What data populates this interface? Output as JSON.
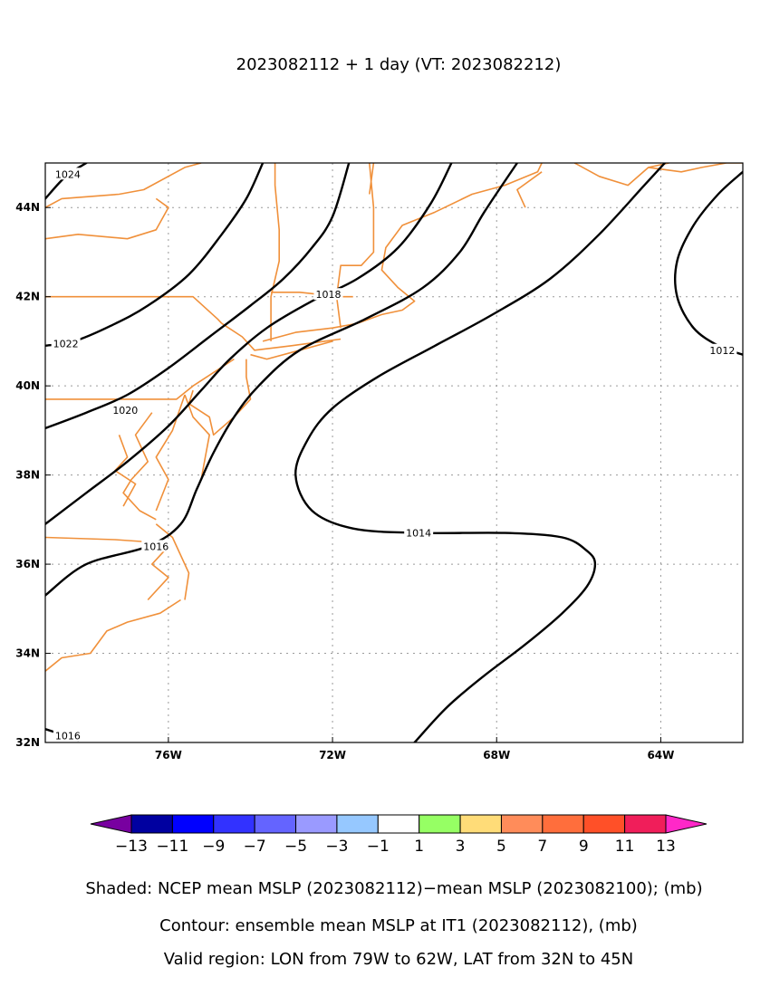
{
  "title": "2023082112 + 1 day (VT: 2023082212)",
  "captions": [
    "Shaded: NCEP mean MSLP (2023082112)−mean MSLP (2023082100); (mb)",
    "Contour: ensemble mean MSLP at IT1 (2023082112), (mb)",
    "Valid region: LON from 79W to 62W, LAT from 32N to 45N"
  ],
  "colors": {
    "coast": "#f0903a",
    "contour": "#000000",
    "grid": "#9a9a9a"
  },
  "chart_data": {
    "type": "contour-map",
    "projection": "lat-lon",
    "xlim": [
      -79,
      -62
    ],
    "ylim": [
      32,
      45
    ],
    "grid": true,
    "x_ticks": [
      {
        "value": -76,
        "label": "76W"
      },
      {
        "value": -72,
        "label": "72W"
      },
      {
        "value": -68,
        "label": "68W"
      },
      {
        "value": -64,
        "label": "64W"
      }
    ],
    "y_ticks": [
      {
        "value": 44,
        "label": "44N"
      },
      {
        "value": 42,
        "label": "42N"
      },
      {
        "value": 40,
        "label": "40N"
      },
      {
        "value": 38,
        "label": "38N"
      },
      {
        "value": 36,
        "label": "36N"
      },
      {
        "value": 34,
        "label": "34N"
      },
      {
        "value": 32,
        "label": "32N"
      }
    ],
    "colorbar": {
      "ticks": [
        "−13",
        "−11",
        "−9",
        "−7",
        "−5",
        "−3",
        "−1",
        "1",
        "3",
        "5",
        "7",
        "9",
        "11",
        "13"
      ],
      "bins": [
        "#0000a0",
        "#0000ff",
        "#3232ff",
        "#6464ff",
        "#9a9aff",
        "#96c8ff",
        "#ffffff",
        "#96ff64",
        "#ffdc78",
        "#ff8c5a",
        "#ff6e3c",
        "#ff5028",
        "#f01e5a"
      ],
      "under_color": "#7800a0",
      "over_color": "#ff28c8"
    },
    "contours": [
      {
        "level": 1024,
        "label": "1024",
        "label_at": [
          -78.45,
          44.75
        ],
        "points": [
          [
            -79,
            44.2
          ],
          [
            -78.5,
            44.7
          ],
          [
            -78,
            45
          ]
        ]
      },
      {
        "level": 1022,
        "label": "1022",
        "label_at": [
          -78.5,
          40.95
        ],
        "points": [
          [
            -79,
            40.9
          ],
          [
            -78.3,
            41.0
          ],
          [
            -77.4,
            41.35
          ],
          [
            -76.5,
            41.8
          ],
          [
            -75.5,
            42.5
          ],
          [
            -74.7,
            43.4
          ],
          [
            -74.1,
            44.2
          ],
          [
            -73.7,
            45
          ]
        ]
      },
      {
        "level": 1020,
        "label": "1020",
        "label_at": [
          -77.05,
          39.45
        ],
        "points": [
          [
            -79,
            39.05
          ],
          [
            -78,
            39.4
          ],
          [
            -77,
            39.8
          ],
          [
            -76,
            40.4
          ],
          [
            -75,
            41.1
          ],
          [
            -74,
            41.8
          ],
          [
            -73.2,
            42.4
          ],
          [
            -72.5,
            43.1
          ],
          [
            -72,
            43.8
          ],
          [
            -71.6,
            45
          ]
        ]
      },
      {
        "level": 1018,
        "label": "1018",
        "label_at": [
          -72.1,
          42.05
        ],
        "points": [
          [
            -79,
            36.9
          ],
          [
            -78,
            37.6
          ],
          [
            -77,
            38.3
          ],
          [
            -76,
            39.1
          ],
          [
            -75.2,
            39.9
          ],
          [
            -74.5,
            40.6
          ],
          [
            -73.6,
            41.3
          ],
          [
            -72.5,
            41.9
          ],
          [
            -71.4,
            42.4
          ],
          [
            -70.4,
            43.1
          ],
          [
            -69.6,
            44.1
          ],
          [
            -69.1,
            45
          ]
        ]
      },
      {
        "level": 1016,
        "label": "1016",
        "label_at": [
          -76.3,
          36.4
        ],
        "points": [
          [
            -79,
            35.3
          ],
          [
            -78,
            36.0
          ],
          [
            -76.5,
            36.4
          ],
          [
            -75.7,
            36.9
          ],
          [
            -75.3,
            37.7
          ],
          [
            -74.9,
            38.5
          ],
          [
            -74.4,
            39.3
          ],
          [
            -73.8,
            40.0
          ],
          [
            -72.8,
            40.8
          ],
          [
            -71.2,
            41.5
          ],
          [
            -69.8,
            42.2
          ],
          [
            -68.9,
            43.0
          ],
          [
            -68.3,
            43.9
          ],
          [
            -67.5,
            45
          ]
        ]
      },
      {
        "level": 1016,
        "label": "1016",
        "label_at": [
          -78.45,
          32.15
        ],
        "points": [
          [
            -79,
            32.3
          ],
          [
            -78.6,
            32.18
          ],
          [
            -78.2,
            32.05
          ]
        ]
      },
      {
        "level": 1014,
        "label": "1014",
        "label_at": [
          -69.9,
          36.7
        ],
        "points": [
          [
            -70,
            32
          ],
          [
            -69.2,
            32.8
          ],
          [
            -68.3,
            33.5
          ],
          [
            -67.3,
            34.2
          ],
          [
            -66.4,
            34.9
          ],
          [
            -65.8,
            35.5
          ],
          [
            -65.6,
            36.0
          ],
          [
            -65.8,
            36.3
          ],
          [
            -66.4,
            36.6
          ],
          [
            -67.8,
            36.7
          ],
          [
            -69.9,
            36.7
          ],
          [
            -71.5,
            36.8
          ],
          [
            -72.5,
            37.2
          ],
          [
            -72.9,
            38.0
          ],
          [
            -72.6,
            38.8
          ],
          [
            -72.0,
            39.5
          ],
          [
            -70.9,
            40.2
          ],
          [
            -69.5,
            40.9
          ],
          [
            -68.1,
            41.6
          ],
          [
            -66.7,
            42.4
          ],
          [
            -65.5,
            43.4
          ],
          [
            -64.4,
            44.5
          ],
          [
            -63.9,
            45
          ]
        ]
      },
      {
        "level": 1012,
        "label": "1012",
        "label_at": [
          -62.5,
          40.8
        ],
        "points": [
          [
            -62,
            44.8
          ],
          [
            -62.6,
            44.3
          ],
          [
            -63.2,
            43.6
          ],
          [
            -63.6,
            42.8
          ],
          [
            -63.6,
            42.0
          ],
          [
            -63.2,
            41.3
          ],
          [
            -62.6,
            40.9
          ],
          [
            -62,
            40.7
          ]
        ]
      }
    ]
  }
}
